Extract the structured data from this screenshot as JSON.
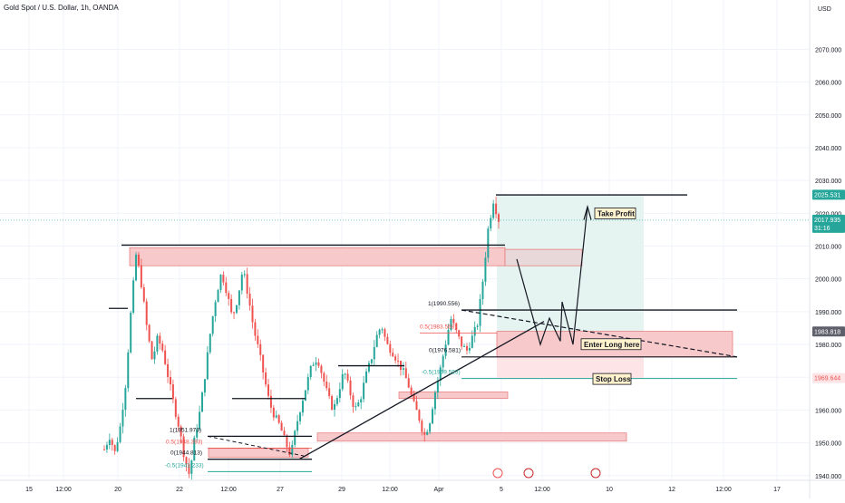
{
  "title": "Gold Spot / U.S. Dollar, 1h, OANDA",
  "currency_label": "USD",
  "colors": {
    "bull": "#26a69a",
    "bear": "#ef5350",
    "zone_fill": "#f8c9cb",
    "zone_stroke": "#e57373",
    "target_fill": "#e6f4f1",
    "stop_fill": "#fde4e6",
    "price_tag": "#26a69a",
    "last_tag": "#ef5350",
    "grey_tag": "#5d606b"
  },
  "chart_data": {
    "type": "candlestick",
    "title": "Gold Spot / U.S. Dollar, 1h, OANDA",
    "ylim": [
      1938,
      2082
    ],
    "y_ticks": [
      "1940.000",
      "1950.000",
      "1960.000",
      "1970.000",
      "1980.000",
      "1990.000",
      "2000.000",
      "2010.000",
      "2020.000",
      "2030.000",
      "2040.000",
      "2050.000",
      "2060.000",
      "2070.000"
    ],
    "x_ticks": [
      "15",
      "12:00",
      "20",
      "22",
      "12:00",
      "27",
      "29",
      "12:00",
      "Apr",
      "5",
      "12:00",
      "10",
      "12",
      "12:00",
      "17"
    ],
    "price_tags": [
      {
        "value": "2025.531",
        "price": 2025.5,
        "style": "bull"
      },
      {
        "value": "2017.935",
        "sub": "31:16",
        "price": 2017.9,
        "style": "bull"
      },
      {
        "value": "1983.818",
        "price": 1983.8,
        "style": "grey"
      },
      {
        "value": "1969.644",
        "price": 1969.6,
        "style": "stop"
      }
    ],
    "fib_labels": [
      {
        "text": "1(1990.556)",
        "color": "#131722"
      },
      {
        "text": "0.5(1983.568)",
        "color": "#ef5350"
      },
      {
        "text": "0(1976.581)",
        "color": "#131722"
      },
      {
        "text": "-0.5(1969.593)",
        "color": "#26a69a"
      },
      {
        "text": "1(1951.973)",
        "color": "#131722"
      },
      {
        "text": "0.5(1948.393)",
        "color": "#ef5350"
      },
      {
        "text": "0(1944.813)",
        "color": "#131722"
      },
      {
        "text": "-0.5(1941.233)",
        "color": "#26a69a"
      }
    ],
    "annotations": [
      "Take Profit",
      "Enter Long here",
      "Stop Loss"
    ],
    "path_prices": [
      1948,
      1952,
      1947,
      1955,
      1968,
      1990,
      2008,
      1998,
      1985,
      1975,
      1982,
      1978,
      1970,
      1962,
      1955,
      1946,
      1940,
      1952,
      1960,
      1972,
      1985,
      1995,
      2002,
      1996,
      1988,
      1994,
      2003,
      1995,
      1985,
      1978,
      1970,
      1962,
      1958,
      1955,
      1950,
      1946,
      1955,
      1962,
      1968,
      1974,
      1976,
      1970,
      1964,
      1960,
      1966,
      1972,
      1966,
      1960,
      1963,
      1970,
      1975,
      1982,
      1986,
      1980,
      1978,
      1975,
      1972,
      1968,
      1962,
      1958,
      1952,
      1956,
      1965,
      1972,
      1980,
      1988,
      1984,
      1980,
      1978,
      1982,
      1986,
      1999,
      2015,
      2024,
      2018
    ]
  }
}
